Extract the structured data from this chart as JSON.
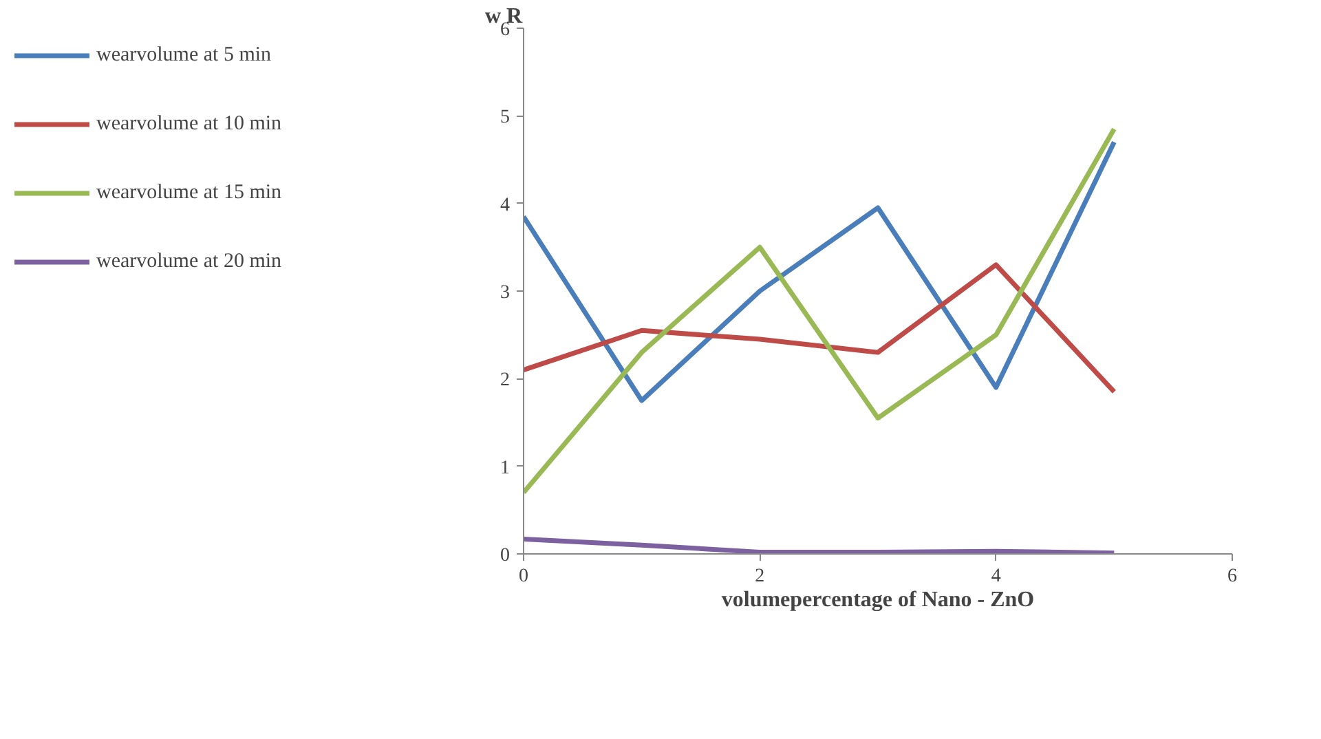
{
  "chart_data": {
    "type": "line",
    "xlabel": "volumepercentage of Nano - ZnO",
    "ylabel": "w R",
    "x": [
      0,
      1,
      2,
      3,
      4,
      5
    ],
    "xlim": [
      0,
      6
    ],
    "xticks": [
      0,
      2,
      4,
      6
    ],
    "ylim": [
      0,
      6
    ],
    "yticks": [
      0,
      1,
      2,
      3,
      4,
      5,
      6
    ],
    "series": [
      {
        "name": "wearvolume at 5 min",
        "color": "#4a7ebb",
        "values": [
          3.85,
          1.75,
          3.0,
          3.95,
          1.9,
          4.7
        ]
      },
      {
        "name": "wearvolume at 10 min",
        "color": "#be4b48",
        "values": [
          2.1,
          2.55,
          2.45,
          2.3,
          3.3,
          1.85
        ]
      },
      {
        "name": "wearvolume at 15 min",
        "color": "#98b954",
        "values": [
          0.7,
          2.3,
          3.5,
          1.55,
          2.5,
          4.85
        ]
      },
      {
        "name": "wearvolume at 20 min",
        "color": "#7d60a0",
        "values": [
          0.17,
          0.1,
          0.02,
          0.02,
          0.03,
          0.01
        ]
      }
    ],
    "grid": false,
    "legend": "left",
    "marker": "none",
    "line_style": "solid"
  }
}
